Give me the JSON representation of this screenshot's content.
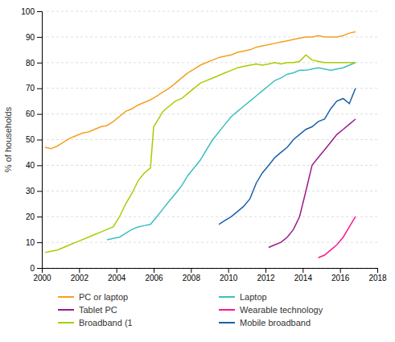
{
  "chart_data": {
    "type": "line",
    "ylabel": "% of households",
    "xlim": [
      2000,
      2018
    ],
    "ylim": [
      0,
      100
    ],
    "xticks": [
      2000,
      2002,
      2004,
      2006,
      2008,
      2010,
      2012,
      2014,
      2016,
      2018
    ],
    "yticks": [
      0,
      10,
      20,
      30,
      40,
      50,
      60,
      70,
      80,
      90,
      100
    ],
    "grid": true,
    "legend": "bottom",
    "series": [
      {
        "name": "PC or laptop",
        "color": "#F4A020",
        "x": [
          2000.17,
          2000.5,
          2000.83,
          2001.17,
          2001.5,
          2001.83,
          2002.17,
          2002.5,
          2002.83,
          2003.17,
          2003.5,
          2003.83,
          2004.17,
          2004.5,
          2004.83,
          2005.17,
          2005.5,
          2005.83,
          2006.17,
          2006.5,
          2006.83,
          2007.17,
          2007.5,
          2007.83,
          2008.17,
          2008.5,
          2008.83,
          2009.17,
          2009.5,
          2009.83,
          2010.17,
          2010.5,
          2010.83,
          2011.17,
          2011.5,
          2011.83,
          2012.17,
          2012.5,
          2012.83,
          2013.17,
          2013.5,
          2013.83,
          2014.17,
          2014.5,
          2014.83,
          2015.17,
          2015.5,
          2015.83,
          2016.17,
          2016.5,
          2016.83
        ],
        "values": [
          47,
          46.5,
          47.5,
          49,
          50.5,
          51.5,
          52.5,
          53,
          54,
          55,
          55.5,
          57,
          59,
          61,
          62,
          63.5,
          64.5,
          65.5,
          67,
          68.5,
          70,
          72,
          74,
          76,
          77.5,
          79,
          80,
          81,
          82,
          82.5,
          83,
          84,
          84.5,
          85,
          86,
          86.5,
          87,
          87.5,
          88,
          88.5,
          89,
          89.5,
          90,
          90,
          90.5,
          90,
          90,
          90,
          90.5,
          91.5,
          92
        ]
      },
      {
        "name": "Laptop",
        "color": "#3DBFBF",
        "x": [
          2003.5,
          2003.83,
          2004.17,
          2004.5,
          2004.83,
          2005.17,
          2005.5,
          2005.83,
          2006.17,
          2006.5,
          2006.83,
          2007.17,
          2007.5,
          2007.83,
          2008.17,
          2008.5,
          2008.83,
          2009.17,
          2009.5,
          2009.83,
          2010.17,
          2010.5,
          2010.83,
          2011.17,
          2011.5,
          2011.83,
          2012.17,
          2012.5,
          2012.83,
          2013.17,
          2013.5,
          2013.83,
          2014.17,
          2014.5,
          2014.83,
          2015.17,
          2015.5,
          2015.83,
          2016.17,
          2016.5,
          2016.83
        ],
        "values": [
          11,
          11.5,
          12,
          13.5,
          15,
          16,
          16.5,
          17,
          20,
          23,
          26,
          29,
          32,
          36,
          39,
          42,
          46,
          50,
          53,
          56,
          59,
          61,
          63,
          65,
          67,
          69,
          71,
          73,
          74,
          75.5,
          76,
          77,
          77,
          77.5,
          78,
          77.5,
          77,
          77.5,
          78,
          79,
          80
        ]
      },
      {
        "name": "Tablet PC",
        "color": "#9B1B8A",
        "x": [
          2012.17,
          2012.5,
          2012.83,
          2013.17,
          2013.5,
          2013.83,
          2014.17,
          2014.5,
          2014.83,
          2015.17,
          2015.5,
          2015.83,
          2016.17,
          2016.5,
          2016.83
        ],
        "values": [
          8,
          9,
          10,
          12,
          15,
          20,
          30,
          40,
          43,
          46,
          49,
          52,
          54,
          56,
          58
        ]
      },
      {
        "name": "Wearable technology",
        "color": "#FF1493",
        "x": [
          2014.83,
          2015.17,
          2015.5,
          2015.83,
          2016.17,
          2016.5,
          2016.83
        ],
        "values": [
          4,
          5,
          7,
          9,
          12,
          16,
          20
        ]
      },
      {
        "name": "Broadband (1",
        "color": "#AACC00",
        "x": [
          2000.17,
          2000.5,
          2000.83,
          2001.17,
          2001.5,
          2001.83,
          2002.17,
          2002.5,
          2002.83,
          2003.17,
          2003.5,
          2003.83,
          2004.17,
          2004.5,
          2004.83,
          2005.17,
          2005.5,
          2005.83,
          2006.0,
          2006.17,
          2006.5,
          2006.83,
          2007.17,
          2007.5,
          2007.83,
          2008.17,
          2008.5,
          2008.83,
          2009.17,
          2009.5,
          2009.83,
          2010.17,
          2010.5,
          2010.83,
          2011.17,
          2011.5,
          2011.83,
          2012.17,
          2012.5,
          2012.83,
          2013.17,
          2013.5,
          2013.83,
          2014.17,
          2014.5,
          2014.83,
          2015.17,
          2015.5,
          2015.83,
          2016.17,
          2016.5,
          2016.83
        ],
        "values": [
          6,
          6.5,
          7,
          8,
          9,
          10,
          11,
          12,
          13,
          14,
          15,
          16,
          20,
          25,
          29,
          34,
          37,
          39,
          55,
          57,
          61,
          63,
          65,
          66,
          68,
          70,
          72,
          73,
          74,
          75,
          76,
          77,
          78,
          78.5,
          79,
          79.5,
          79,
          79.5,
          80,
          79.5,
          80,
          80,
          80.5,
          83,
          81,
          80.5,
          80,
          80,
          80,
          80,
          80,
          80
        ]
      },
      {
        "name": "Mobile broadband",
        "color": "#1B5FA8",
        "x": [
          2009.5,
          2009.83,
          2010.17,
          2010.5,
          2010.83,
          2011.17,
          2011.5,
          2011.83,
          2012.17,
          2012.5,
          2012.83,
          2013.17,
          2013.5,
          2013.83,
          2014.17,
          2014.5,
          2014.83,
          2015.17,
          2015.5,
          2015.83,
          2016.17,
          2016.5,
          2016.83
        ],
        "values": [
          17,
          18.5,
          20,
          22,
          24,
          27,
          33,
          37,
          40,
          43,
          45,
          47,
          50,
          52,
          54,
          55,
          57,
          58,
          62,
          65,
          66,
          64,
          70
        ]
      }
    ]
  }
}
